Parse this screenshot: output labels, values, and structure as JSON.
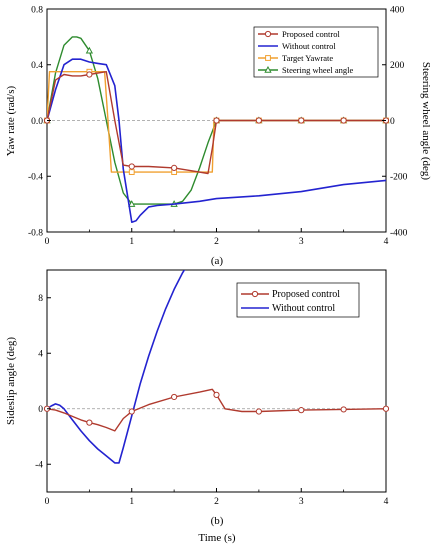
{
  "chart_data": [
    {
      "type": "line",
      "caption": "(a)",
      "xlim": [
        0,
        4
      ],
      "x_ticks": [
        "0",
        "1",
        "2",
        "3",
        "4"
      ],
      "ylabel": "Yaw rate (rad/s)",
      "ylim": [
        -0.8,
        0.8
      ],
      "y_ticks": [
        "-0.8",
        "-0.4",
        "0.0",
        "0.4",
        "0.8"
      ],
      "y2label": "Steering wheel angle (deg)",
      "y2lim": [
        -400,
        400
      ],
      "y2_ticks": [
        "-400",
        "-200",
        "0",
        "200",
        "400"
      ],
      "legend_position": "top-right",
      "series": [
        {
          "name": "Proposed control",
          "color": "#b03a2e",
          "marker": "circle",
          "axis": "left",
          "x": [
            0,
            0.1,
            0.2,
            0.3,
            0.4,
            0.5,
            0.6,
            0.7,
            0.8,
            0.9,
            1.0,
            1.2,
            1.5,
            1.7,
            1.9,
            1.95,
            2.0,
            2.5,
            3.0,
            3.5,
            4.0
          ],
          "y": [
            0,
            0.29,
            0.33,
            0.32,
            0.32,
            0.33,
            0.34,
            0.35,
            0.0,
            -0.32,
            -0.33,
            -0.33,
            -0.34,
            -0.36,
            -0.38,
            -0.2,
            0.0,
            0.0,
            0.0,
            0.0,
            0.0
          ]
        },
        {
          "name": "Without control",
          "color": "#2323d0",
          "marker": "none",
          "axis": "left",
          "x": [
            0,
            0.1,
            0.2,
            0.3,
            0.4,
            0.5,
            0.6,
            0.7,
            0.8,
            0.85,
            0.9,
            1.0,
            1.05,
            1.1,
            1.2,
            1.3,
            1.5,
            1.8,
            2.0,
            2.5,
            3.0,
            3.5,
            4.0
          ],
          "y": [
            0,
            0.22,
            0.4,
            0.44,
            0.44,
            0.42,
            0.41,
            0.4,
            0.25,
            0.0,
            -0.35,
            -0.73,
            -0.72,
            -0.68,
            -0.62,
            -0.61,
            -0.6,
            -0.58,
            -0.56,
            -0.54,
            -0.51,
            -0.46,
            -0.43
          ]
        },
        {
          "name": "Target Yawrate",
          "color": "#f0a030",
          "marker": "square",
          "axis": "left",
          "x": [
            0,
            0.03,
            0.1,
            0.3,
            0.5,
            0.68,
            0.72,
            0.76,
            1.0,
            1.5,
            1.95,
            1.97,
            2.0,
            2.5,
            3.0,
            4.0
          ],
          "y": [
            0,
            0.35,
            0.35,
            0.35,
            0.35,
            0.35,
            0.0,
            -0.37,
            -0.37,
            -0.37,
            -0.37,
            0.0,
            0.0,
            0.0,
            0.0,
            0.0
          ]
        },
        {
          "name": "Steering wheel angle",
          "color": "#2e8b2e",
          "marker": "triangle",
          "axis": "right",
          "x": [
            0,
            0.1,
            0.2,
            0.3,
            0.35,
            0.4,
            0.5,
            0.6,
            0.7,
            0.8,
            0.9,
            1.0,
            1.1,
            1.5,
            1.6,
            1.7,
            1.8,
            1.9,
            2.0,
            2.5,
            3.0,
            3.5,
            4.0
          ],
          "y": [
            0,
            170,
            270,
            300,
            300,
            295,
            250,
            150,
            0,
            -150,
            -260,
            -300,
            -300,
            -300,
            -290,
            -250,
            -170,
            -80,
            0,
            0,
            0,
            0,
            0
          ]
        }
      ]
    },
    {
      "type": "line",
      "caption": "(b)",
      "xlabel": "Time (s)",
      "xlim": [
        0,
        4
      ],
      "x_ticks": [
        "0",
        "1",
        "2",
        "3",
        "4"
      ],
      "ylabel": "Sideslip angle (deg)",
      "ylim": [
        -6,
        10
      ],
      "y_ticks": [
        "-4",
        "0",
        "4",
        "8"
      ],
      "legend_position": "top-right",
      "series": [
        {
          "name": "Proposed control",
          "color": "#b03a2e",
          "marker": "circle",
          "x": [
            0,
            0.1,
            0.2,
            0.3,
            0.4,
            0.5,
            0.6,
            0.7,
            0.8,
            0.9,
            1.0,
            1.2,
            1.5,
            1.8,
            1.95,
            2.0,
            2.1,
            2.3,
            2.5,
            3.0,
            3.5,
            4.0
          ],
          "y": [
            0,
            -0.1,
            -0.3,
            -0.55,
            -0.8,
            -1.0,
            -1.15,
            -1.35,
            -1.6,
            -0.7,
            -0.2,
            0.3,
            0.85,
            1.2,
            1.4,
            1.0,
            0.0,
            -0.2,
            -0.2,
            -0.1,
            -0.05,
            0.0
          ]
        },
        {
          "name": "Without control",
          "color": "#2323d0",
          "marker": "none",
          "x": [
            0,
            0.05,
            0.1,
            0.15,
            0.2,
            0.3,
            0.4,
            0.5,
            0.6,
            0.7,
            0.8,
            0.85,
            0.9,
            1.0,
            1.1,
            1.2,
            1.3,
            1.4,
            1.5,
            1.6,
            1.7,
            1.75
          ],
          "y": [
            0,
            0.2,
            0.35,
            0.25,
            0.0,
            -0.8,
            -1.6,
            -2.3,
            -2.9,
            -3.4,
            -3.9,
            -3.9,
            -2.8,
            -0.5,
            1.8,
            3.8,
            5.6,
            7.2,
            8.6,
            9.8,
            10.8,
            11.2
          ]
        }
      ]
    }
  ]
}
